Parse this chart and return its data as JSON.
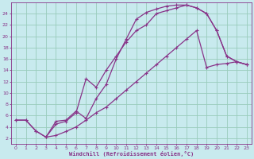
{
  "bg_color": "#c8eaee",
  "grid_color": "#99ccbb",
  "line_color": "#883388",
  "xlabel": "Windchill (Refroidissement éolien,°C)",
  "xlim": [
    -0.5,
    23.5
  ],
  "ylim": [
    1.0,
    26.0
  ],
  "xticks": [
    0,
    1,
    2,
    3,
    4,
    5,
    6,
    7,
    8,
    9,
    10,
    11,
    12,
    13,
    14,
    15,
    16,
    17,
    18,
    19,
    20,
    21,
    22,
    23
  ],
  "yticks": [
    2,
    4,
    6,
    8,
    10,
    12,
    14,
    16,
    18,
    20,
    22,
    24
  ],
  "curve1_x": [
    0,
    1,
    2,
    3,
    4,
    5,
    6,
    7,
    8,
    9,
    10,
    11,
    12,
    13,
    14,
    15,
    16,
    17,
    18,
    19,
    20,
    21,
    22,
    23
  ],
  "curve1_y": [
    5.2,
    5.2,
    3.3,
    2.2,
    5.0,
    5.2,
    6.8,
    5.5,
    9.0,
    11.5,
    16.0,
    19.5,
    23.0,
    24.2,
    24.8,
    25.3,
    25.5,
    25.5,
    25.0,
    24.0,
    21.0,
    16.5,
    15.5,
    15.0
  ],
  "curve2_x": [
    3,
    4,
    5,
    6,
    7,
    8,
    9,
    10,
    11,
    12,
    13,
    14,
    15,
    16,
    17,
    18,
    19,
    20,
    21,
    22,
    23
  ],
  "curve2_y": [
    2.2,
    4.5,
    5.0,
    6.5,
    12.5,
    11.0,
    14.0,
    16.5,
    19.0,
    21.0,
    22.0,
    24.0,
    24.5,
    25.0,
    25.5,
    25.0,
    24.0,
    21.0,
    16.5,
    15.5,
    15.0
  ],
  "curve3_x": [
    0,
    1,
    2,
    3,
    4,
    5,
    6,
    7,
    8,
    9,
    10,
    11,
    12,
    13,
    14,
    15,
    16,
    17,
    18,
    19,
    20,
    21,
    22,
    23
  ],
  "curve3_y": [
    5.2,
    5.2,
    3.3,
    2.2,
    2.5,
    3.2,
    4.0,
    5.2,
    6.5,
    7.5,
    9.0,
    10.5,
    12.0,
    13.5,
    15.0,
    16.5,
    18.0,
    19.5,
    21.0,
    14.5,
    15.0,
    15.2,
    15.5,
    15.0
  ]
}
